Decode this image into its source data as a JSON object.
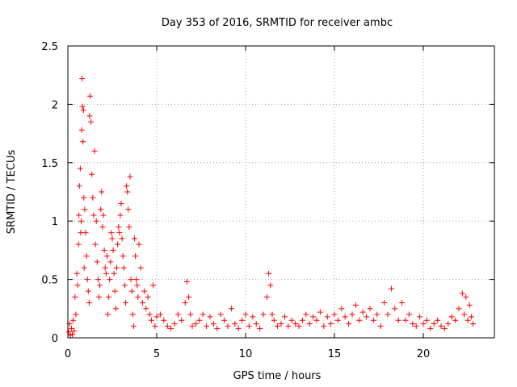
{
  "chart_data": {
    "type": "scatter",
    "title": "Day 353 of 2016, SRMTID for receiver ambc",
    "xlabel": "GPS time / hours",
    "ylabel": "SRMTID / TECUs",
    "xlim": [
      0,
      24
    ],
    "ylim": [
      0,
      2.5
    ],
    "xticks": [
      0,
      5,
      10,
      15,
      20
    ],
    "xtick_labels": [
      "0",
      "5",
      "10",
      "15",
      "20"
    ],
    "yticks": [
      0,
      0.5,
      1,
      1.5,
      2,
      2.5
    ],
    "ytick_labels": [
      "0",
      "0.5",
      "1",
      "1.5",
      "2",
      "2.5"
    ],
    "grid": true,
    "marker": "+",
    "marker_color": "#ff0000",
    "series": [
      {
        "name": "SRMTID",
        "points": [
          [
            0.05,
            0.05
          ],
          [
            0.1,
            0.12
          ],
          [
            0.15,
            0.02
          ],
          [
            0.2,
            0.08
          ],
          [
            0.25,
            0.03
          ],
          [
            0.3,
            0.15
          ],
          [
            0.35,
            0.06
          ],
          [
            0.4,
            0.35
          ],
          [
            0.45,
            0.2
          ],
          [
            0.5,
            0.55
          ],
          [
            0.55,
            0.45
          ],
          [
            0.6,
            0.8
          ],
          [
            0.62,
            1.05
          ],
          [
            0.65,
            1.3
          ],
          [
            0.7,
            1.45
          ],
          [
            0.72,
            0.9
          ],
          [
            0.75,
            1.0
          ],
          [
            0.78,
            1.78
          ],
          [
            0.8,
            2.22
          ],
          [
            0.82,
            1.98
          ],
          [
            0.85,
            1.68
          ],
          [
            0.88,
            1.95
          ],
          [
            0.9,
            1.2
          ],
          [
            0.92,
            0.6
          ],
          [
            0.95,
            1.1
          ],
          [
            1.0,
            0.9
          ],
          [
            1.05,
            0.7
          ],
          [
            1.1,
            0.5
          ],
          [
            1.15,
            0.4
          ],
          [
            1.2,
            0.3
          ],
          [
            1.22,
            1.9
          ],
          [
            1.25,
            2.07
          ],
          [
            1.3,
            1.85
          ],
          [
            1.35,
            1.4
          ],
          [
            1.4,
            1.2
          ],
          [
            1.45,
            1.05
          ],
          [
            1.5,
            1.6
          ],
          [
            1.55,
            0.8
          ],
          [
            1.6,
            1.0
          ],
          [
            1.65,
            0.65
          ],
          [
            1.7,
            0.5
          ],
          [
            1.75,
            0.35
          ],
          [
            1.8,
            0.45
          ],
          [
            1.85,
            1.1
          ],
          [
            1.9,
            1.25
          ],
          [
            1.95,
            0.95
          ],
          [
            2.0,
            1.05
          ],
          [
            2.05,
            0.75
          ],
          [
            2.1,
            0.6
          ],
          [
            2.15,
            0.55
          ],
          [
            2.2,
            0.7
          ],
          [
            2.25,
            0.2
          ],
          [
            2.3,
            0.35
          ],
          [
            2.35,
            0.5
          ],
          [
            2.4,
            0.65
          ],
          [
            2.45,
            0.9
          ],
          [
            2.5,
            0.85
          ],
          [
            2.55,
            0.75
          ],
          [
            2.6,
            0.55
          ],
          [
            2.65,
            0.4
          ],
          [
            2.7,
            0.25
          ],
          [
            2.75,
            0.6
          ],
          [
            2.8,
            0.8
          ],
          [
            2.85,
            0.95
          ],
          [
            2.9,
            0.9
          ],
          [
            2.95,
            1.05
          ],
          [
            3.0,
            1.15
          ],
          [
            3.05,
            0.85
          ],
          [
            3.1,
            0.7
          ],
          [
            3.15,
            0.6
          ],
          [
            3.2,
            0.45
          ],
          [
            3.25,
            0.3
          ],
          [
            3.3,
            1.3
          ],
          [
            3.35,
            1.25
          ],
          [
            3.4,
            1.1
          ],
          [
            3.45,
            0.95
          ],
          [
            3.5,
            1.38
          ],
          [
            3.55,
            0.5
          ],
          [
            3.6,
            0.4
          ],
          [
            3.65,
            0.2
          ],
          [
            3.7,
            0.1
          ],
          [
            3.75,
            0.85
          ],
          [
            3.8,
            0.7
          ],
          [
            3.85,
            0.5
          ],
          [
            3.9,
            0.45
          ],
          [
            3.95,
            0.35
          ],
          [
            4.0,
            0.8
          ],
          [
            4.1,
            0.6
          ],
          [
            4.2,
            0.3
          ],
          [
            4.3,
            0.4
          ],
          [
            4.4,
            0.25
          ],
          [
            4.5,
            0.35
          ],
          [
            4.6,
            0.2
          ],
          [
            4.7,
            0.15
          ],
          [
            4.8,
            0.45
          ],
          [
            4.9,
            0.1
          ],
          [
            5.0,
            0.18
          ],
          [
            5.2,
            0.2
          ],
          [
            5.4,
            0.15
          ],
          [
            5.6,
            0.1
          ],
          [
            5.8,
            0.08
          ],
          [
            6.0,
            0.12
          ],
          [
            6.2,
            0.2
          ],
          [
            6.4,
            0.15
          ],
          [
            6.6,
            0.3
          ],
          [
            6.7,
            0.48
          ],
          [
            6.8,
            0.35
          ],
          [
            6.9,
            0.2
          ],
          [
            7.0,
            0.1
          ],
          [
            7.2,
            0.12
          ],
          [
            7.4,
            0.15
          ],
          [
            7.6,
            0.2
          ],
          [
            7.8,
            0.1
          ],
          [
            8.0,
            0.18
          ],
          [
            8.2,
            0.12
          ],
          [
            8.4,
            0.08
          ],
          [
            8.6,
            0.2
          ],
          [
            8.8,
            0.15
          ],
          [
            9.0,
            0.1
          ],
          [
            9.2,
            0.25
          ],
          [
            9.4,
            0.12
          ],
          [
            9.6,
            0.08
          ],
          [
            9.8,
            0.15
          ],
          [
            10.0,
            0.2
          ],
          [
            10.2,
            0.1
          ],
          [
            10.4,
            0.18
          ],
          [
            10.6,
            0.12
          ],
          [
            10.8,
            0.08
          ],
          [
            11.0,
            0.2
          ],
          [
            11.2,
            0.35
          ],
          [
            11.3,
            0.55
          ],
          [
            11.4,
            0.45
          ],
          [
            11.5,
            0.2
          ],
          [
            11.6,
            0.15
          ],
          [
            11.8,
            0.1
          ],
          [
            12.0,
            0.12
          ],
          [
            12.2,
            0.18
          ],
          [
            12.4,
            0.1
          ],
          [
            12.6,
            0.15
          ],
          [
            12.8,
            0.12
          ],
          [
            13.0,
            0.1
          ],
          [
            13.2,
            0.15
          ],
          [
            13.4,
            0.2
          ],
          [
            13.6,
            0.12
          ],
          [
            13.8,
            0.18
          ],
          [
            14.0,
            0.15
          ],
          [
            14.2,
            0.22
          ],
          [
            14.4,
            0.1
          ],
          [
            14.6,
            0.18
          ],
          [
            14.8,
            0.12
          ],
          [
            15.0,
            0.2
          ],
          [
            15.2,
            0.15
          ],
          [
            15.4,
            0.25
          ],
          [
            15.6,
            0.18
          ],
          [
            15.8,
            0.12
          ],
          [
            16.0,
            0.2
          ],
          [
            16.2,
            0.28
          ],
          [
            16.4,
            0.15
          ],
          [
            16.6,
            0.22
          ],
          [
            16.8,
            0.18
          ],
          [
            17.0,
            0.25
          ],
          [
            17.2,
            0.15
          ],
          [
            17.4,
            0.2
          ],
          [
            17.6,
            0.1
          ],
          [
            17.8,
            0.3
          ],
          [
            18.0,
            0.2
          ],
          [
            18.2,
            0.42
          ],
          [
            18.4,
            0.25
          ],
          [
            18.6,
            0.15
          ],
          [
            18.8,
            0.3
          ],
          [
            19.0,
            0.15
          ],
          [
            19.2,
            0.2
          ],
          [
            19.4,
            0.12
          ],
          [
            19.6,
            0.1
          ],
          [
            19.8,
            0.18
          ],
          [
            20.0,
            0.12
          ],
          [
            20.2,
            0.15
          ],
          [
            20.4,
            0.08
          ],
          [
            20.6,
            0.12
          ],
          [
            20.8,
            0.15
          ],
          [
            21.0,
            0.1
          ],
          [
            21.2,
            0.08
          ],
          [
            21.4,
            0.12
          ],
          [
            21.6,
            0.18
          ],
          [
            21.8,
            0.15
          ],
          [
            22.0,
            0.25
          ],
          [
            22.2,
            0.38
          ],
          [
            22.3,
            0.2
          ],
          [
            22.4,
            0.35
          ],
          [
            22.5,
            0.15
          ],
          [
            22.6,
            0.28
          ],
          [
            22.7,
            0.18
          ],
          [
            22.8,
            0.12
          ]
        ]
      }
    ]
  }
}
